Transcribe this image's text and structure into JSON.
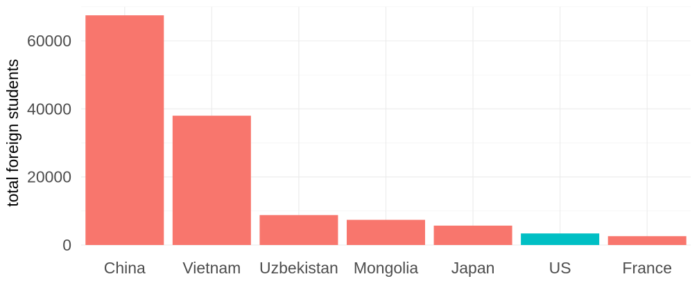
{
  "chart_data": {
    "type": "bar",
    "title": "",
    "xlabel": "",
    "ylabel": "total foreign students",
    "categories": [
      "China",
      "Vietnam",
      "Uzbekistan",
      "Mongolia",
      "Japan",
      "US",
      "France"
    ],
    "values": [
      67500,
      38000,
      8800,
      7400,
      5700,
      3400,
      2600
    ],
    "highlight": {
      "category": "US",
      "color": "#00BFC4"
    },
    "default_color": "#F8766D",
    "ylim": [
      0,
      70000
    ],
    "yticks": [
      0,
      20000,
      40000,
      60000
    ],
    "yticks_text": [
      "0",
      "20000",
      "40000",
      "60000"
    ],
    "grid": true,
    "legend": "none"
  }
}
